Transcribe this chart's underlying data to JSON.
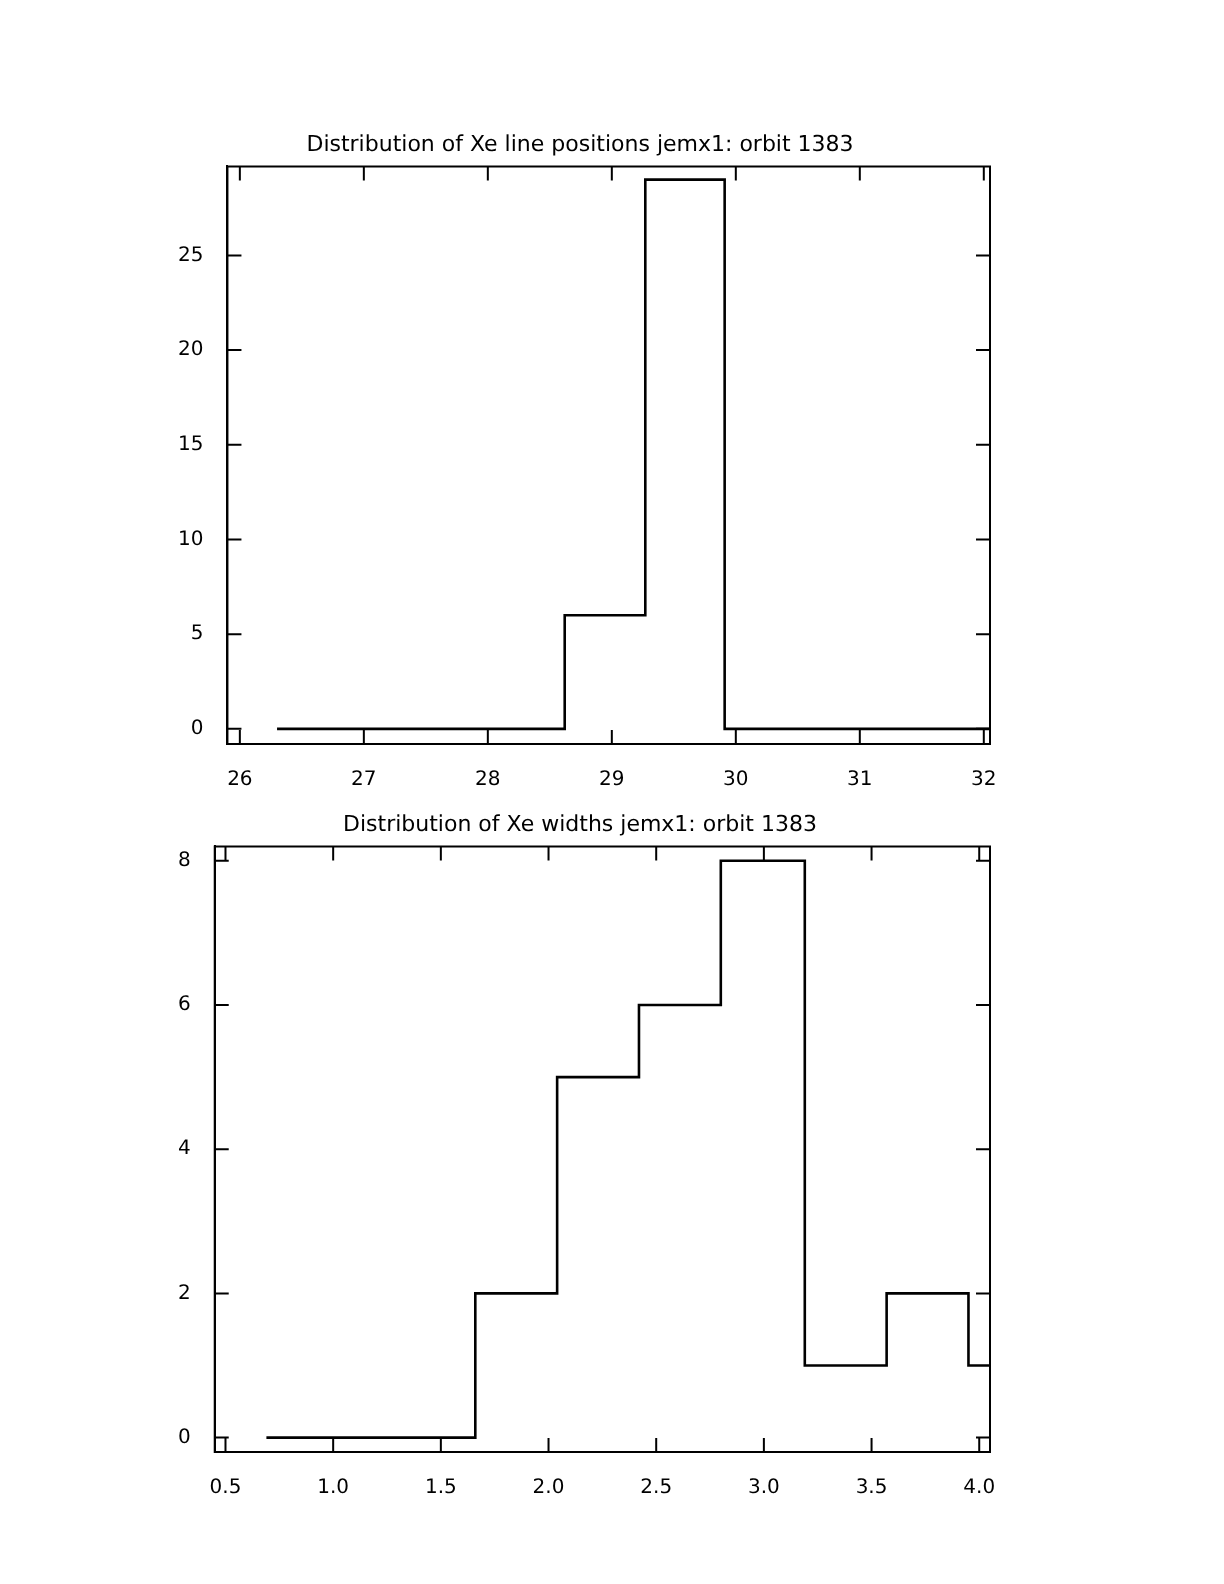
{
  "chart_data": [
    {
      "type": "histogram",
      "title": "Distribution of Xe line positions jemx1: orbit 1383",
      "bins": [
        26.3,
        28.62,
        29.27,
        29.91,
        32.05
      ],
      "values": [
        0,
        6,
        29,
        0
      ],
      "color": "#000000",
      "xlim": [
        25.9,
        32.05
      ],
      "ylim": [
        -0.8,
        29.7
      ],
      "xticks": [
        26,
        27,
        28,
        29,
        30,
        31,
        32
      ],
      "yticks": [
        0,
        5,
        10,
        15,
        20,
        25
      ]
    },
    {
      "type": "histogram",
      "title": "Distribution of Xe widths jemx1: orbit 1383",
      "bins": [
        0.69,
        1.66,
        2.04,
        2.42,
        2.8,
        3.19,
        3.57,
        3.95,
        4.05
      ],
      "values": [
        0,
        2,
        5,
        6,
        8,
        1,
        2,
        1
      ],
      "color": "#000000",
      "xlim": [
        0.45,
        4.05
      ],
      "ylim": [
        -0.2,
        8.2
      ],
      "xticks": [
        {
          "value": 0.5,
          "label": "0.5"
        },
        {
          "value": 1,
          "label": "1.0"
        },
        {
          "value": 1.5,
          "label": "1.5"
        },
        {
          "value": 2,
          "label": "2.0"
        },
        {
          "value": 2.5,
          "label": "2.5"
        },
        {
          "value": 3,
          "label": "3.0"
        },
        {
          "value": 3.5,
          "label": "3.5"
        },
        {
          "value": 4,
          "label": "4.0"
        }
      ],
      "yticks": [
        0,
        2,
        4,
        6,
        8
      ]
    }
  ]
}
